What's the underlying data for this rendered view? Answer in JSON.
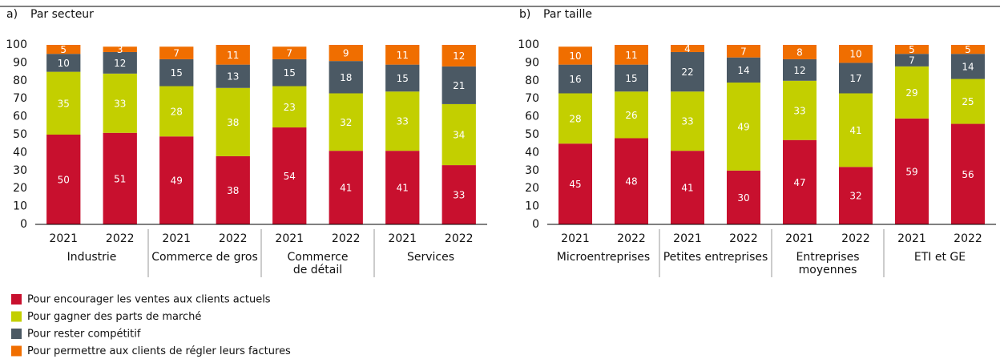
{
  "chart_data": [
    {
      "type": "stacked_bar",
      "label": "a)",
      "title": "Par secteur",
      "categories": [
        "2021",
        "2022",
        "2021",
        "2022",
        "2021",
        "2022",
        "2021",
        "2022"
      ],
      "groups": [
        [
          "Industrie"
        ],
        [
          "Commerce de gros"
        ],
        [
          "Commerce",
          "de détail"
        ],
        [
          "Services"
        ]
      ],
      "ylim": [
        0,
        100
      ],
      "yticks": [
        0,
        10,
        20,
        30,
        40,
        50,
        60,
        70,
        80,
        90,
        100
      ],
      "grid": false,
      "series": [
        {
          "name": "Pour encourager les ventes aux clients actuels",
          "color": "#c8102e",
          "values": [
            50,
            51,
            49,
            38,
            54,
            41,
            41,
            33
          ]
        },
        {
          "name": "Pour gagner des parts de marché",
          "color": "#c3cf00",
          "values": [
            35,
            33,
            28,
            38,
            23,
            32,
            33,
            34
          ]
        },
        {
          "name": "Pour rester compétitif",
          "color": "#4b5964",
          "values": [
            10,
            12,
            15,
            13,
            15,
            18,
            15,
            21
          ]
        },
        {
          "name": "Pour permettre aux clients de régler leurs factures",
          "color": "#f06e00",
          "values": [
            5,
            3,
            7,
            11,
            7,
            9,
            11,
            12
          ]
        }
      ]
    },
    {
      "type": "stacked_bar",
      "label": "b)",
      "title": "Par taille",
      "categories": [
        "2021",
        "2022",
        "2021",
        "2022",
        "2021",
        "2022",
        "2021",
        "2022"
      ],
      "groups": [
        [
          "Microentreprises"
        ],
        [
          "Petites entreprises"
        ],
        [
          "Entreprises",
          "moyennes"
        ],
        [
          "ETI et GE"
        ]
      ],
      "ylim": [
        0,
        100
      ],
      "yticks": [
        0,
        10,
        20,
        30,
        40,
        50,
        60,
        70,
        80,
        90,
        100
      ],
      "grid": false,
      "series": [
        {
          "color": "#c8102e",
          "values": [
            45,
            48,
            41,
            30,
            47,
            32,
            59,
            56
          ]
        },
        {
          "color": "#c3cf00",
          "values": [
            28,
            26,
            33,
            49,
            33,
            41,
            29,
            25
          ]
        },
        {
          "color": "#4b5964",
          "values": [
            16,
            15,
            22,
            14,
            12,
            17,
            7,
            14
          ]
        },
        {
          "color": "#f06e00",
          "values": [
            10,
            11,
            4,
            7,
            8,
            10,
            5,
            5
          ]
        }
      ]
    }
  ]
}
